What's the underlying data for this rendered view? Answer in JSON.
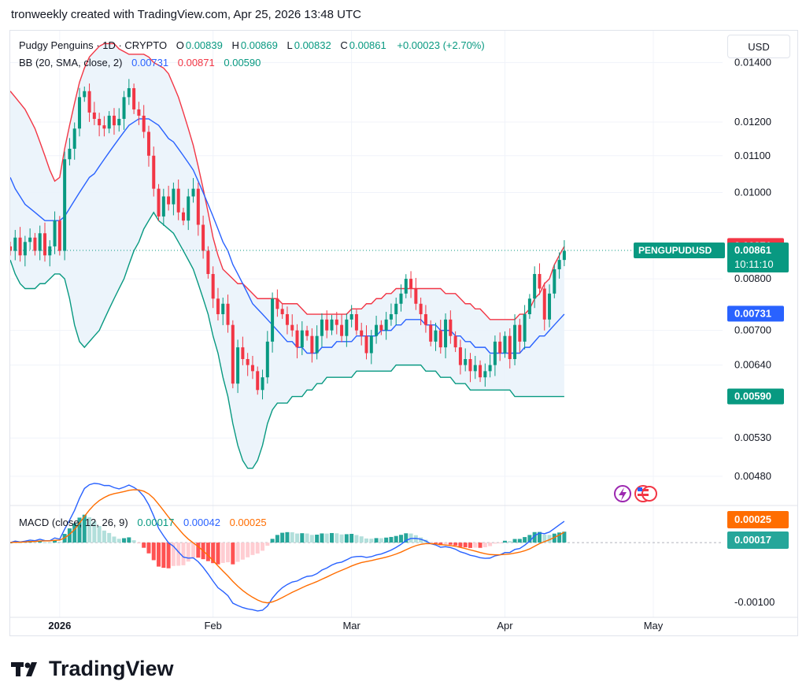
{
  "header": {
    "caption": "tronweekly created with TradingView.com, Apr 25, 2026 13:48 UTC"
  },
  "legend": {
    "symbol": "Pudgy Penguins · 1D · CRYPTO",
    "o_label": "O",
    "o_value": "0.00839",
    "h_label": "H",
    "h_value": "0.00869",
    "l_label": "L",
    "l_value": "0.00832",
    "c_label": "C",
    "c_value": "0.00861",
    "change": "+0.00023 (+2.70%)",
    "bb_label": "BB (20, SMA, close, 2)",
    "bb_mid": "0.00731",
    "bb_upper": "0.00871",
    "bb_lower": "0.00590",
    "macd_label": "MACD (close, 12, 26, 9)",
    "macd_hist": "0.00017",
    "macd_line": "0.00042",
    "macd_signal": "0.00025"
  },
  "currency_button": "USD",
  "footer": {
    "brand": "TradingView"
  },
  "colors": {
    "up": "#089981",
    "down": "#f23645",
    "bb_basis": "#2962ff",
    "bb_upper": "#f23645",
    "bb_lower": "#089981",
    "bb_fill": "#eaf3fb",
    "macd": "#2962ff",
    "signal": "#ff6d00",
    "hist_up_strong": "#26a69a",
    "hist_up_weak": "#b2dfdb",
    "hist_down_strong": "#ff5252",
    "hist_down_weak": "#ffcdd2"
  },
  "chart_data": {
    "type": "candlestick",
    "scale": "log",
    "ylim": [
      0.00445,
      0.0152
    ],
    "price_ticks": [
      "0.01400",
      "0.01200",
      "0.01100",
      "0.01000",
      "0.00800",
      "0.00700",
      "0.00640",
      "0.00530",
      "0.00480"
    ],
    "macd_ylim": [
      -0.00125,
      0.00062
    ],
    "macd_ticks": [
      "-0.00100"
    ],
    "x_labels": [
      {
        "label": "2026",
        "date": "2026-01-01"
      },
      {
        "label": "Feb",
        "date": "2026-02-01"
      },
      {
        "label": "Mar",
        "date": "2026-03-01"
      },
      {
        "label": "Apr",
        "date": "2026-04-01"
      },
      {
        "label": "May",
        "date": "2026-05-01"
      }
    ],
    "x_range": [
      "2025-12-22",
      "2026-05-15"
    ],
    "symbol_label": "PENGUPUDUSD",
    "countdown": "10:11:10",
    "last_price": "0.00861",
    "price_tags": [
      {
        "value": "0.00871",
        "role": "bb_upper"
      },
      {
        "value": "0.00731",
        "role": "bb_basis"
      },
      {
        "value": "0.00590",
        "role": "bb_lower"
      }
    ],
    "macd_tags": [
      {
        "value": "0.00025",
        "role": "signal"
      },
      {
        "value": "0.00017",
        "role": "hist"
      }
    ],
    "closes": [
      0.0086,
      0.0089,
      0.0085,
      0.0088,
      0.0089,
      0.0086,
      0.009,
      0.0085,
      0.0087,
      0.0093,
      0.0086,
      0.0109,
      0.0112,
      0.0118,
      0.0128,
      0.013,
      0.0123,
      0.0121,
      0.0119,
      0.0118,
      0.0122,
      0.0119,
      0.0121,
      0.0128,
      0.0131,
      0.0124,
      0.0122,
      0.0117,
      0.011,
      0.0101,
      0.0094,
      0.0099,
      0.0097,
      0.0101,
      0.0095,
      0.0093,
      0.0099,
      0.0101,
      0.0092,
      0.0086,
      0.0081,
      0.0076,
      0.0073,
      0.0075,
      0.0071,
      0.0061,
      0.0067,
      0.0065,
      0.0064,
      0.0063,
      0.006,
      0.0062,
      0.0068,
      0.0076,
      0.0074,
      0.0073,
      0.0071,
      0.007,
      0.0067,
      0.007,
      0.0069,
      0.0066,
      0.0069,
      0.0072,
      0.007,
      0.0072,
      0.0071,
      0.0069,
      0.0072,
      0.0073,
      0.007,
      0.0069,
      0.0066,
      0.0069,
      0.0071,
      0.007,
      0.0072,
      0.0073,
      0.0075,
      0.0077,
      0.008,
      0.0078,
      0.0075,
      0.0073,
      0.0071,
      0.0068,
      0.007,
      0.0067,
      0.0072,
      0.0069,
      0.0067,
      0.0064,
      0.0065,
      0.0063,
      0.0064,
      0.0062,
      0.0063,
      0.0064,
      0.0068,
      0.0066,
      0.0069,
      0.0065,
      0.0071,
      0.0068,
      0.0073,
      0.0076,
      0.0081,
      0.0078,
      0.0072,
      0.0077,
      0.0082,
      0.0084,
      0.0086
    ],
    "ohlc_first_open": 0.0087,
    "bb_basis": [
      0.0104,
      0.0101,
      0.0099,
      0.0097,
      0.0096,
      0.0095,
      0.0094,
      0.0093,
      0.0093,
      0.0093,
      0.0093,
      0.0094,
      0.0096,
      0.0098,
      0.01,
      0.0102,
      0.0104,
      0.0105,
      0.0107,
      0.0109,
      0.0111,
      0.0113,
      0.0115,
      0.0117,
      0.0119,
      0.012,
      0.0121,
      0.0121,
      0.0121,
      0.012,
      0.0119,
      0.0117,
      0.0115,
      0.0114,
      0.0112,
      0.011,
      0.0108,
      0.0106,
      0.0103,
      0.01,
      0.0097,
      0.0094,
      0.0091,
      0.0088,
      0.0086,
      0.0083,
      0.0081,
      0.0079,
      0.0077,
      0.0075,
      0.0074,
      0.0073,
      0.0072,
      0.0071,
      0.007,
      0.0069,
      0.0068,
      0.0068,
      0.0067,
      0.0067,
      0.0066,
      0.0066,
      0.0066,
      0.0067,
      0.0067,
      0.0067,
      0.0068,
      0.0068,
      0.0068,
      0.0068,
      0.0069,
      0.0069,
      0.0069,
      0.0069,
      0.0069,
      0.007,
      0.007,
      0.007,
      0.0071,
      0.0071,
      0.0072,
      0.0072,
      0.0072,
      0.0072,
      0.0071,
      0.0071,
      0.0071,
      0.007,
      0.007,
      0.007,
      0.0069,
      0.0069,
      0.0068,
      0.0068,
      0.0067,
      0.0067,
      0.0067,
      0.0066,
      0.0066,
      0.0066,
      0.0066,
      0.0066,
      0.0066,
      0.0066,
      0.0067,
      0.0067,
      0.0068,
      0.0069,
      0.0069,
      0.007,
      0.0071,
      0.0072,
      0.0073
    ],
    "bb_upper": [
      0.013,
      0.0128,
      0.0126,
      0.0124,
      0.0121,
      0.0118,
      0.0114,
      0.011,
      0.0106,
      0.0103,
      0.0104,
      0.0112,
      0.0119,
      0.0126,
      0.0133,
      0.0138,
      0.0142,
      0.0144,
      0.0146,
      0.0147,
      0.0147,
      0.0147,
      0.0145,
      0.0144,
      0.0143,
      0.0143,
      0.0143,
      0.0143,
      0.0142,
      0.014,
      0.0139,
      0.0138,
      0.0136,
      0.0132,
      0.0128,
      0.0123,
      0.0118,
      0.0113,
      0.0107,
      0.0101,
      0.0095,
      0.0089,
      0.0085,
      0.0082,
      0.0081,
      0.008,
      0.0079,
      0.0079,
      0.0078,
      0.0077,
      0.0076,
      0.0076,
      0.0076,
      0.0076,
      0.0076,
      0.0075,
      0.0075,
      0.0075,
      0.0075,
      0.0074,
      0.0073,
      0.0073,
      0.0073,
      0.0073,
      0.0073,
      0.0073,
      0.0073,
      0.0073,
      0.0073,
      0.0074,
      0.0074,
      0.0074,
      0.0075,
      0.0075,
      0.0076,
      0.0076,
      0.0077,
      0.0077,
      0.0078,
      0.0078,
      0.0078,
      0.0078,
      0.0078,
      0.0078,
      0.0078,
      0.0078,
      0.0078,
      0.0078,
      0.0077,
      0.0077,
      0.0077,
      0.0076,
      0.0075,
      0.0075,
      0.0074,
      0.0074,
      0.0073,
      0.0072,
      0.0072,
      0.0072,
      0.0072,
      0.0072,
      0.0072,
      0.0073,
      0.0073,
      0.0074,
      0.0076,
      0.0077,
      0.0079,
      0.008,
      0.0083,
      0.0085,
      0.0087
    ],
    "bb_lower": [
      0.0084,
      0.0081,
      0.0079,
      0.0078,
      0.0078,
      0.0078,
      0.0079,
      0.0079,
      0.008,
      0.0081,
      0.0081,
      0.008,
      0.0076,
      0.0071,
      0.0068,
      0.0067,
      0.0068,
      0.0069,
      0.007,
      0.0072,
      0.0074,
      0.0076,
      0.0078,
      0.008,
      0.0083,
      0.0086,
      0.0088,
      0.0091,
      0.0093,
      0.0095,
      0.0093,
      0.0092,
      0.0091,
      0.009,
      0.0088,
      0.0086,
      0.0084,
      0.0082,
      0.0079,
      0.0076,
      0.0073,
      0.0069,
      0.0066,
      0.0062,
      0.0059,
      0.0055,
      0.0052,
      0.005,
      0.0049,
      0.0049,
      0.005,
      0.0052,
      0.0055,
      0.0057,
      0.0058,
      0.0058,
      0.0058,
      0.0059,
      0.0059,
      0.0059,
      0.006,
      0.006,
      0.0061,
      0.0061,
      0.0062,
      0.0062,
      0.0062,
      0.0062,
      0.0062,
      0.0062,
      0.0063,
      0.0063,
      0.0063,
      0.0063,
      0.0063,
      0.0063,
      0.0063,
      0.0063,
      0.0064,
      0.0064,
      0.0064,
      0.0064,
      0.0064,
      0.0064,
      0.0063,
      0.0063,
      0.0063,
      0.0062,
      0.0062,
      0.0062,
      0.0061,
      0.0061,
      0.0061,
      0.006,
      0.006,
      0.006,
      0.006,
      0.006,
      0.006,
      0.006,
      0.006,
      0.006,
      0.0059,
      0.0059,
      0.0059,
      0.0059,
      0.0059,
      0.0059,
      0.0059,
      0.0059,
      0.0059,
      0.0059,
      0.0059
    ]
  }
}
